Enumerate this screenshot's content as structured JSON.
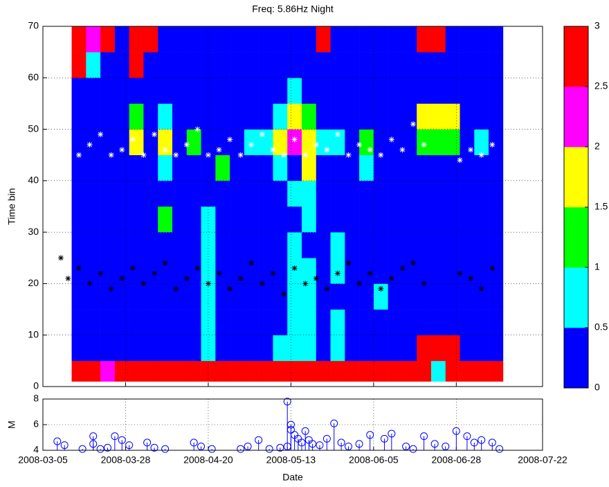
{
  "chart_data": [
    {
      "type": "heatmap",
      "title": "Freq: 5.86Hz  Night",
      "ylabel": "Time bin",
      "x": [
        "2008-03-13",
        "2008-03-17",
        "2008-03-21",
        "2008-03-25",
        "2008-03-29",
        "2008-04-02",
        "2008-04-06",
        "2008-04-10",
        "2008-04-14",
        "2008-04-18",
        "2008-04-22",
        "2008-04-26",
        "2008-04-30",
        "2008-05-04",
        "2008-05-08",
        "2008-05-12",
        "2008-05-16",
        "2008-05-20",
        "2008-05-24",
        "2008-05-28",
        "2008-06-01",
        "2008-06-05",
        "2008-06-09",
        "2008-06-13",
        "2008-06-17",
        "2008-06-21",
        "2008-06-25",
        "2008-06-29",
        "2008-07-03",
        "2008-07-07",
        "2008-07-11"
      ],
      "y": [
        1,
        5,
        10,
        15,
        20,
        25,
        30,
        35,
        40,
        45,
        50,
        55,
        60,
        65,
        70
      ],
      "z": [
        [
          3,
          3,
          2.2,
          3,
          3,
          3,
          3,
          3,
          3,
          3,
          3,
          3,
          3,
          3,
          3,
          3,
          3,
          3,
          3,
          3,
          3,
          3,
          3,
          3,
          3,
          0.8,
          3,
          3,
          3,
          3
        ],
        [
          0.2,
          0.2,
          0.2,
          0.2,
          0.2,
          0.2,
          0.2,
          0.2,
          0.2,
          0.8,
          0.2,
          0.2,
          0.2,
          0.2,
          0.8,
          0.8,
          0.8,
          0.2,
          0.8,
          0.2,
          0.2,
          0.2,
          0.2,
          0.2,
          3,
          3,
          3,
          0.2,
          0.2,
          0.2
        ],
        [
          0.2,
          0.2,
          0.2,
          0.2,
          0.2,
          0.2,
          0.2,
          0.2,
          0.2,
          0.8,
          0.2,
          0.2,
          0.2,
          0.2,
          0.2,
          0.8,
          0.8,
          0.2,
          0.8,
          0.2,
          0.2,
          0.2,
          0.2,
          0.2,
          0.2,
          0.2,
          0.2,
          0.2,
          0.2,
          0.2
        ],
        [
          0.2,
          0.2,
          0.2,
          0.2,
          0.2,
          0.2,
          0.2,
          0.2,
          0.2,
          0.8,
          0.2,
          0.2,
          0.2,
          0.2,
          0.2,
          0.8,
          0.8,
          0.2,
          0.2,
          0.2,
          0.2,
          0.8,
          0.2,
          0.2,
          0.2,
          0.2,
          0.2,
          0.2,
          0.2,
          0.2
        ],
        [
          0.2,
          0.2,
          0.2,
          0.2,
          0.2,
          0.2,
          0.2,
          0.2,
          0.2,
          0.8,
          0.2,
          0.2,
          0.2,
          0.2,
          0.2,
          0.8,
          0.8,
          0.2,
          0.8,
          0.2,
          0.2,
          0.2,
          0.2,
          0.2,
          0.2,
          0.2,
          0.2,
          0.2,
          0.2,
          0.2
        ],
        [
          0.2,
          0.2,
          0.2,
          0.2,
          0.2,
          0.2,
          0.2,
          0.2,
          0.2,
          0.8,
          0.2,
          0.2,
          0.2,
          0.2,
          0.2,
          0.8,
          0.2,
          0.2,
          0.8,
          0.2,
          0.2,
          0.2,
          0.2,
          0.2,
          0.2,
          0.2,
          0.2,
          0.2,
          0.2,
          0.2
        ],
        [
          0.2,
          0.2,
          0.2,
          0.2,
          0.2,
          0.2,
          1.2,
          0.2,
          0.2,
          0.8,
          0.2,
          0.2,
          0.2,
          0.2,
          0.2,
          0.2,
          0.8,
          0.2,
          0.2,
          0.2,
          0.2,
          0.2,
          0.2,
          0.2,
          0.2,
          0.2,
          0.2,
          0.2,
          0.2,
          0.2
        ],
        [
          0.2,
          0.2,
          0.2,
          0.2,
          0.2,
          0.2,
          0.2,
          0.2,
          0.2,
          0.2,
          0.2,
          0.2,
          0.2,
          0.2,
          0.2,
          0.8,
          0.8,
          0.2,
          0.2,
          0.2,
          0.2,
          0.2,
          0.2,
          0.2,
          0.2,
          0.2,
          0.2,
          0.2,
          0.2,
          0.2
        ],
        [
          0.2,
          0.2,
          0.2,
          0.2,
          0.2,
          0.2,
          0.8,
          0.2,
          0.2,
          0.2,
          1.2,
          0.2,
          0.2,
          0.2,
          0.8,
          0.2,
          1.8,
          0.2,
          0.2,
          0.2,
          0.8,
          0.2,
          0.2,
          0.2,
          0.2,
          0.2,
          0.2,
          0.2,
          0.2,
          0.2
        ],
        [
          0.2,
          0.2,
          0.2,
          0.2,
          1.8,
          0.2,
          1.8,
          0.2,
          1.2,
          0.2,
          0.2,
          0.2,
          0.8,
          0.8,
          1.8,
          2.2,
          1.8,
          0.8,
          0.8,
          0.2,
          1.2,
          0.2,
          0.2,
          0.2,
          1.2,
          1.2,
          1.2,
          0.2,
          0.8,
          0.2
        ],
        [
          0.2,
          0.2,
          0.2,
          0.2,
          1.2,
          0.2,
          0.8,
          0.2,
          0.2,
          0.2,
          0.2,
          0.2,
          0.2,
          0.2,
          0.8,
          1.8,
          1.2,
          0.2,
          0.2,
          0.2,
          0.2,
          0.2,
          0.2,
          0.2,
          1.8,
          1.8,
          1.8,
          0.2,
          0.2,
          0.2
        ],
        [
          0.2,
          0.2,
          0.2,
          0.2,
          0.2,
          0.2,
          0.2,
          0.2,
          0.2,
          0.2,
          0.2,
          0.2,
          0.2,
          0.2,
          0.2,
          0.8,
          0.2,
          0.2,
          0.2,
          0.2,
          0.2,
          0.2,
          0.2,
          0.2,
          0.2,
          0.2,
          0.2,
          0.2,
          0.2,
          0.2
        ],
        [
          3,
          0.8,
          0.2,
          0.2,
          3,
          0.2,
          0.2,
          0.2,
          0.2,
          0.2,
          0.2,
          0.2,
          0.2,
          0.2,
          0.2,
          0.2,
          0.2,
          0.2,
          0.2,
          0.2,
          0.2,
          0.2,
          0.2,
          0.2,
          0.2,
          0.2,
          0.2,
          0.2,
          0.2,
          0.2
        ],
        [
          3,
          2.2,
          3,
          0.2,
          3,
          3,
          0.2,
          0.2,
          0.2,
          0.2,
          0.2,
          0.2,
          0.2,
          0.2,
          0.2,
          0.2,
          0.2,
          3,
          0.2,
          0.2,
          0.2,
          0.2,
          0.2,
          0.2,
          3,
          3,
          0.2,
          0.2,
          0.2,
          0.2
        ]
      ],
      "clim": [
        0,
        3
      ],
      "cticks": [
        0,
        0.5,
        1,
        1.5,
        2,
        2.5,
        3
      ],
      "colors": [
        "#0000ff",
        "#00ffff",
        "#00ff00",
        "#ffff00",
        "#ff00ff",
        "#ff0000"
      ],
      "ylim": [
        0,
        70
      ],
      "yticks": [
        0,
        10,
        20,
        30,
        40,
        50,
        60,
        70
      ],
      "grid": true,
      "series": [
        {
          "color": "#ffffff",
          "x": [
            "2008-03-10",
            "2008-03-12",
            "2008-03-15",
            "2008-03-18",
            "2008-03-21",
            "2008-03-24",
            "2008-03-27",
            "2008-03-30",
            "2008-04-02",
            "2008-04-05",
            "2008-04-08",
            "2008-04-11",
            "2008-04-14",
            "2008-04-17",
            "2008-04-20",
            "2008-04-23",
            "2008-04-26",
            "2008-04-29",
            "2008-05-02",
            "2008-05-05",
            "2008-05-08",
            "2008-05-11",
            "2008-05-14",
            "2008-05-17",
            "2008-05-20",
            "2008-05-23",
            "2008-05-26",
            "2008-05-29",
            "2008-06-01",
            "2008-06-04",
            "2008-06-07",
            "2008-06-10",
            "2008-06-13",
            "2008-06-16",
            "2008-06-19",
            "2008-06-29",
            "2008-07-02",
            "2008-07-05",
            "2008-07-08"
          ],
          "values": [
            50,
            46,
            45,
            47,
            49,
            45,
            46,
            48,
            45,
            49,
            46,
            45,
            47,
            50,
            45,
            46,
            48,
            45,
            47,
            49,
            46,
            45,
            48,
            45,
            47,
            46,
            49,
            45,
            47,
            46,
            45,
            48,
            46,
            51,
            47,
            44,
            46,
            45,
            47
          ]
        },
        {
          "color": "#000000",
          "x": [
            "2008-03-10",
            "2008-03-12",
            "2008-03-15",
            "2008-03-18",
            "2008-03-21",
            "2008-03-24",
            "2008-03-27",
            "2008-03-30",
            "2008-04-02",
            "2008-04-05",
            "2008-04-08",
            "2008-04-11",
            "2008-04-14",
            "2008-04-17",
            "2008-04-20",
            "2008-04-23",
            "2008-04-26",
            "2008-04-29",
            "2008-05-02",
            "2008-05-05",
            "2008-05-08",
            "2008-05-11",
            "2008-05-14",
            "2008-05-17",
            "2008-05-20",
            "2008-05-23",
            "2008-05-26",
            "2008-05-29",
            "2008-06-01",
            "2008-06-04",
            "2008-06-07",
            "2008-06-10",
            "2008-06-13",
            "2008-06-16",
            "2008-06-19",
            "2008-06-29",
            "2008-07-02",
            "2008-07-05",
            "2008-07-08"
          ],
          "values": [
            25,
            21,
            23,
            20,
            22,
            19,
            21,
            23,
            20,
            22,
            24,
            19,
            21,
            23,
            20,
            22,
            19,
            21,
            24,
            20,
            22,
            18,
            23,
            20,
            21,
            19,
            22,
            24,
            20,
            22,
            19,
            21,
            23,
            24,
            20,
            22,
            21,
            19,
            23
          ]
        }
      ]
    },
    {
      "type": "stem",
      "xlabel": "Date",
      "ylabel": "M",
      "color": "#0000ff",
      "x": [
        "2008-03-09",
        "2008-03-11",
        "2008-03-16",
        "2008-03-19",
        "2008-03-19",
        "2008-03-21",
        "2008-03-23",
        "2008-03-25",
        "2008-03-27",
        "2008-03-29",
        "2008-04-03",
        "2008-04-05",
        "2008-04-08",
        "2008-04-16",
        "2008-04-18",
        "2008-04-21",
        "2008-04-29",
        "2008-05-01",
        "2008-05-04",
        "2008-05-07",
        "2008-05-10",
        "2008-05-12",
        "2008-05-12",
        "2008-05-13",
        "2008-05-13",
        "2008-05-14",
        "2008-05-15",
        "2008-05-16",
        "2008-05-17",
        "2008-05-18",
        "2008-05-19",
        "2008-05-21",
        "2008-05-23",
        "2008-05-25",
        "2008-05-27",
        "2008-05-29",
        "2008-06-01",
        "2008-06-04",
        "2008-06-08",
        "2008-06-10",
        "2008-06-14",
        "2008-06-16",
        "2008-06-19",
        "2008-06-22",
        "2008-06-25",
        "2008-06-28",
        "2008-07-01",
        "2008-07-03",
        "2008-07-05",
        "2008-07-08",
        "2008-07-10"
      ],
      "values": [
        4.7,
        4.4,
        4.1,
        5.1,
        4.5,
        4.1,
        4.2,
        5.1,
        4.8,
        4.4,
        4.6,
        4.2,
        4.1,
        4.6,
        4.3,
        4.1,
        4.1,
        4.3,
        4.8,
        4.1,
        4.2,
        4.3,
        7.8,
        6.0,
        5.6,
        5.2,
        4.9,
        4.6,
        5.5,
        4.8,
        4.5,
        4.4,
        4.9,
        6.1,
        4.6,
        4.3,
        4.5,
        5.2,
        4.9,
        5.3,
        4.3,
        4.1,
        5.1,
        4.5,
        4.3,
        5.5,
        5.1,
        4.6,
        4.8,
        4.6,
        4.1
      ],
      "xlim": [
        "2008-03-05",
        "2008-07-22"
      ],
      "xticks": [
        "2008-03-05",
        "2008-03-28",
        "2008-04-20",
        "2008-05-13",
        "2008-06-05",
        "2008-06-28",
        "2008-07-22"
      ],
      "ylim": [
        4,
        8
      ],
      "yticks": [
        4,
        6,
        8
      ],
      "grid": true
    }
  ]
}
